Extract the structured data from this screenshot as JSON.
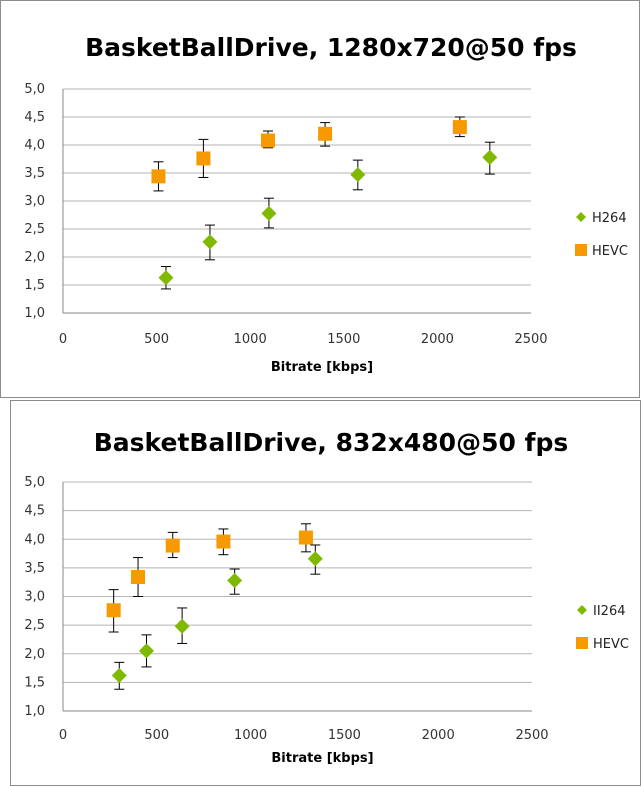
{
  "chart_data": [
    {
      "type": "scatter",
      "title": "BasketBallDrive, 1280x720@50 fps",
      "xlabel": "Bitrate [kbps]",
      "ylabel": "",
      "xlim": [
        0,
        2500
      ],
      "ylim": [
        1.0,
        5.0
      ],
      "x_ticks": [
        "0",
        "500",
        "1000",
        "1500",
        "2000",
        "2500"
      ],
      "y_ticks": [
        "1,0",
        "1,5",
        "2,0",
        "2,5",
        "3,0",
        "3,5",
        "4,0",
        "4,5",
        "5,0"
      ],
      "grid": "horizontal",
      "legend_position": "right",
      "series": [
        {
          "name": "H264",
          "color": "#7fba00",
          "marker": "diamond",
          "points": [
            {
              "x": 550,
              "y": 1.63,
              "lo": 1.43,
              "hi": 1.83
            },
            {
              "x": 785,
              "y": 2.27,
              "lo": 1.95,
              "hi": 2.57
            },
            {
              "x": 1100,
              "y": 2.78,
              "lo": 2.52,
              "hi": 3.05
            },
            {
              "x": 1575,
              "y": 3.47,
              "lo": 3.2,
              "hi": 3.73
            },
            {
              "x": 2280,
              "y": 3.78,
              "lo": 3.48,
              "hi": 4.05
            }
          ]
        },
        {
          "name": "HEVC",
          "color": "#f79a00",
          "marker": "square",
          "points": [
            {
              "x": 510,
              "y": 3.44,
              "lo": 3.18,
              "hi": 3.7
            },
            {
              "x": 750,
              "y": 3.76,
              "lo": 3.42,
              "hi": 4.1
            },
            {
              "x": 1095,
              "y": 4.08,
              "lo": 3.95,
              "hi": 4.25
            },
            {
              "x": 1400,
              "y": 4.2,
              "lo": 3.98,
              "hi": 4.4
            },
            {
              "x": 2120,
              "y": 4.32,
              "lo": 4.15,
              "hi": 4.5
            }
          ]
        }
      ]
    },
    {
      "type": "scatter",
      "title": "BasketBallDrive, 832x480@50 fps",
      "xlabel": "Bitrate [kbps]",
      "ylabel": "",
      "xlim": [
        0,
        2500
      ],
      "ylim": [
        1.0,
        5.0
      ],
      "x_ticks": [
        "0",
        "500",
        "1000",
        "1500",
        "2000",
        "2500"
      ],
      "y_ticks": [
        "1,0",
        "1,5",
        "2,0",
        "2,5",
        "3,0",
        "3,5",
        "4,0",
        "4,5",
        "5,0"
      ],
      "grid": "horizontal",
      "legend_position": "right",
      "series": [
        {
          "name": "II264",
          "color": "#7fba00",
          "marker": "diamond",
          "points": [
            {
              "x": 300,
              "y": 1.62,
              "lo": 1.38,
              "hi": 1.85
            },
            {
              "x": 445,
              "y": 2.05,
              "lo": 1.77,
              "hi": 2.33
            },
            {
              "x": 635,
              "y": 2.48,
              "lo": 2.18,
              "hi": 2.8
            },
            {
              "x": 915,
              "y": 3.28,
              "lo": 3.04,
              "hi": 3.48
            },
            {
              "x": 1345,
              "y": 3.66,
              "lo": 3.39,
              "hi": 3.9
            }
          ]
        },
        {
          "name": "HEVC",
          "color": "#f79a00",
          "marker": "square",
          "points": [
            {
              "x": 270,
              "y": 2.76,
              "lo": 2.38,
              "hi": 3.12
            },
            {
              "x": 400,
              "y": 3.34,
              "lo": 3.0,
              "hi": 3.68
            },
            {
              "x": 585,
              "y": 3.89,
              "lo": 3.68,
              "hi": 4.12
            },
            {
              "x": 855,
              "y": 3.96,
              "lo": 3.73,
              "hi": 4.18
            },
            {
              "x": 1295,
              "y": 4.03,
              "lo": 3.78,
              "hi": 4.27
            }
          ]
        }
      ]
    }
  ]
}
